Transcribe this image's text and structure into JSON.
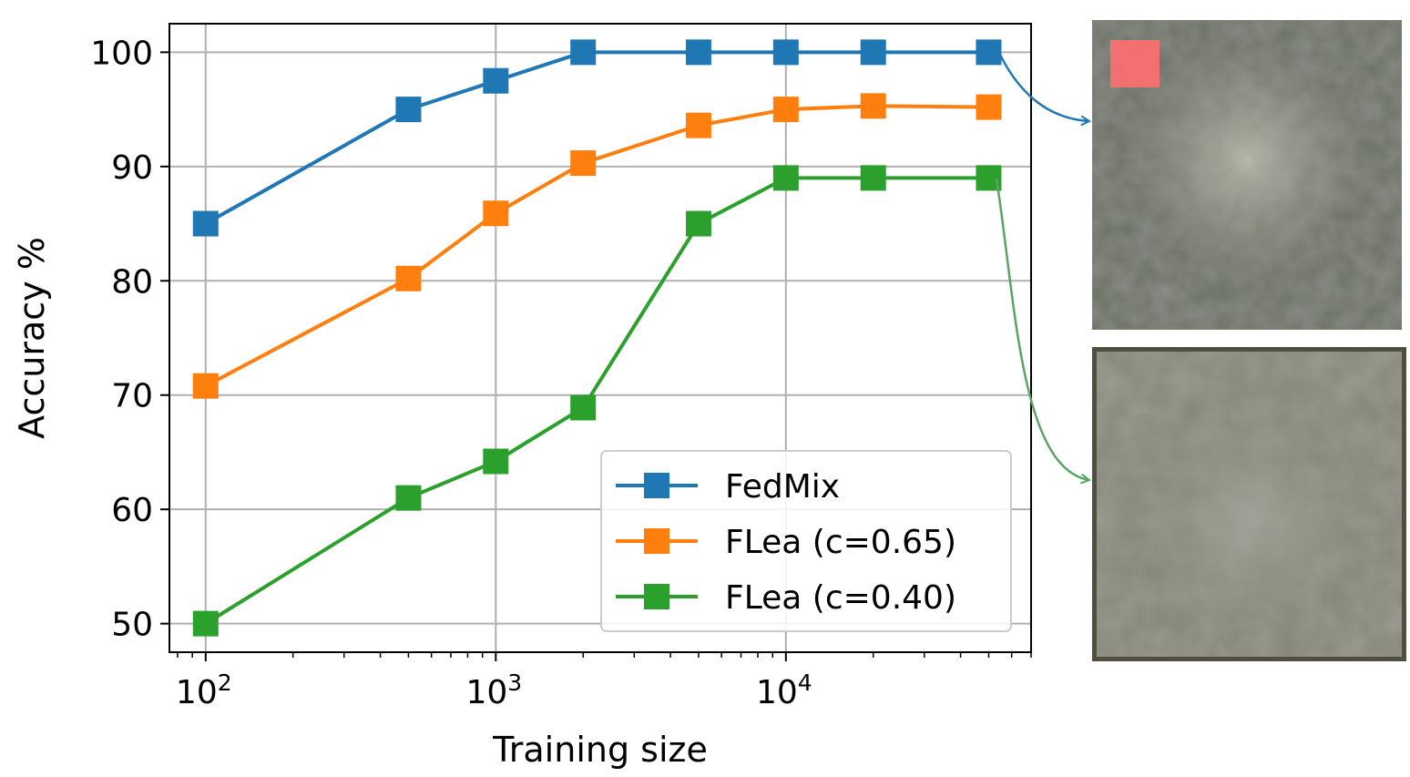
{
  "chart_data": {
    "type": "line",
    "x": [
      100,
      500,
      1000,
      2000,
      5000,
      10000,
      20000,
      50000
    ],
    "x_scale": "log",
    "xlim": [
      75,
      70000
    ],
    "ylim": [
      47.5,
      102.5
    ],
    "xlabel": "Training size",
    "ylabel": "Accuracy %",
    "yticks": [
      50,
      60,
      70,
      80,
      90,
      100
    ],
    "xticks": [
      {
        "value": 100,
        "base": "10",
        "exp": "2"
      },
      {
        "value": 1000,
        "base": "10",
        "exp": "3"
      },
      {
        "value": 10000,
        "base": "10",
        "exp": "4"
      }
    ],
    "grid": true,
    "legend_position": "lower-right",
    "series": [
      {
        "name": "FedMix",
        "color": "#1f77b4",
        "values": [
          85,
          95,
          97.5,
          100,
          100,
          100,
          100,
          100
        ]
      },
      {
        "name": "FLea (c=0.65)",
        "color": "#ff7f0e",
        "values": [
          70.8,
          80.2,
          85.9,
          90.3,
          93.6,
          95.0,
          95.3,
          95.2
        ]
      },
      {
        "name": "FLea (c=0.40)",
        "color": "#2ca02c",
        "values": [
          50,
          61,
          64.2,
          68.9,
          85,
          89,
          89,
          89
        ]
      }
    ]
  },
  "thumbnails": [
    {
      "name": "fedmix-sample-image",
      "series": "FedMix",
      "highlight_color": "#ff6f6f"
    },
    {
      "name": "flea-sample-image",
      "series": "FLea (c=0.40)"
    }
  ]
}
